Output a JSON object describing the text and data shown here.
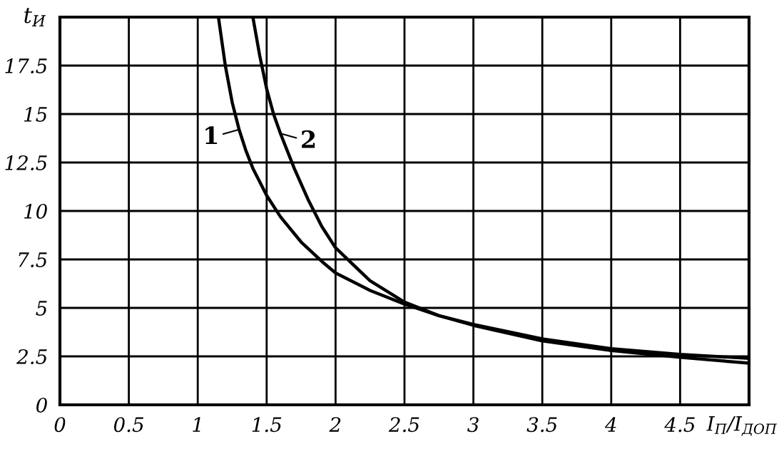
{
  "chart_data": {
    "type": "line",
    "xlabel": "I$_{П}$/I$_{ДОП}$",
    "ylabel": "t$_{И}$",
    "xlim": [
      0,
      5
    ],
    "ylim": [
      0,
      20
    ],
    "xticks": [
      0,
      0.5,
      1,
      1.5,
      2,
      2.5,
      3,
      3.5,
      4,
      {
        "value": 4.5,
        "label": "4.5"
      },
      {
        "value": 5,
        "label": null
      }
    ],
    "yticks": [
      0,
      2.5,
      5,
      7.5,
      10,
      12.5,
      15,
      17.5,
      {
        "value": 20,
        "label": null
      }
    ],
    "grid": true,
    "line_style": "solid",
    "marker": "none",
    "series": [
      {
        "color": "#000000",
        "x": [
          1.15,
          1.2,
          1.25,
          1.3,
          1.35,
          1.4,
          1.5,
          1.6,
          1.75,
          1.9,
          2,
          2.25,
          2.5,
          2.75,
          3,
          3.5,
          4,
          4.5,
          5
        ],
        "values": [
          20,
          17.5,
          15.6,
          14.2,
          13.1,
          12.2,
          10.8,
          9.7,
          8.4,
          7.4,
          6.8,
          5.9,
          5.2,
          4.6,
          4.15,
          3.4,
          2.9,
          2.6,
          2.4
        ]
      },
      {
        "color": "#000000",
        "x": [
          1.4,
          1.45,
          1.5,
          1.55,
          1.6,
          1.7,
          1.8,
          1.9,
          2,
          2.25,
          2.5,
          2.75,
          3,
          3.5,
          4,
          4.5,
          5
        ],
        "values": [
          20,
          18,
          16.3,
          15,
          14,
          12.2,
          10.6,
          9.2,
          8.1,
          6.4,
          5.3,
          4.6,
          4.1,
          3.3,
          2.8,
          2.45,
          2.15
        ]
      }
    ],
    "annotations": [
      {
        "text": "1",
        "x": 1.3,
        "y": 14.2
      },
      {
        "text": "2",
        "x": 1.6,
        "y": 14
      }
    ]
  }
}
